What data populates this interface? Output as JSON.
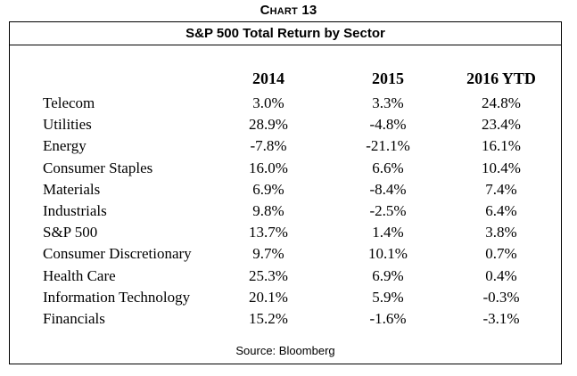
{
  "chart_label": "Chart 13",
  "chart_data": {
    "type": "table",
    "title": "S&P 500 Total Return by Sector",
    "columns": [
      "2014",
      "2015",
      "2016  YTD"
    ],
    "rows": [
      {
        "sector": "Telecom",
        "values": [
          "3.0%",
          "3.3%",
          "24.8%"
        ]
      },
      {
        "sector": "Utilities",
        "values": [
          "28.9%",
          "-4.8%",
          "23.4%"
        ]
      },
      {
        "sector": "Energy",
        "values": [
          "-7.8%",
          "-21.1%",
          "16.1%"
        ]
      },
      {
        "sector": "Consumer Staples",
        "values": [
          "16.0%",
          "6.6%",
          "10.4%"
        ]
      },
      {
        "sector": "Materials",
        "values": [
          "6.9%",
          "-8.4%",
          "7.4%"
        ]
      },
      {
        "sector": "Industrials",
        "values": [
          "9.8%",
          "-2.5%",
          "6.4%"
        ]
      },
      {
        "sector": "S&P 500",
        "values": [
          "13.7%",
          "1.4%",
          "3.8%"
        ]
      },
      {
        "sector": "Consumer Discretionary",
        "values": [
          "9.7%",
          "10.1%",
          "0.7%"
        ]
      },
      {
        "sector": "Health Care",
        "values": [
          "25.3%",
          "6.9%",
          "0.4%"
        ]
      },
      {
        "sector": "Information Technology",
        "values": [
          "20.1%",
          "5.9%",
          "-0.3%"
        ]
      },
      {
        "sector": "Financials",
        "values": [
          "15.2%",
          "-1.6%",
          "-3.1%"
        ]
      }
    ],
    "source": "Source: Bloomberg"
  }
}
